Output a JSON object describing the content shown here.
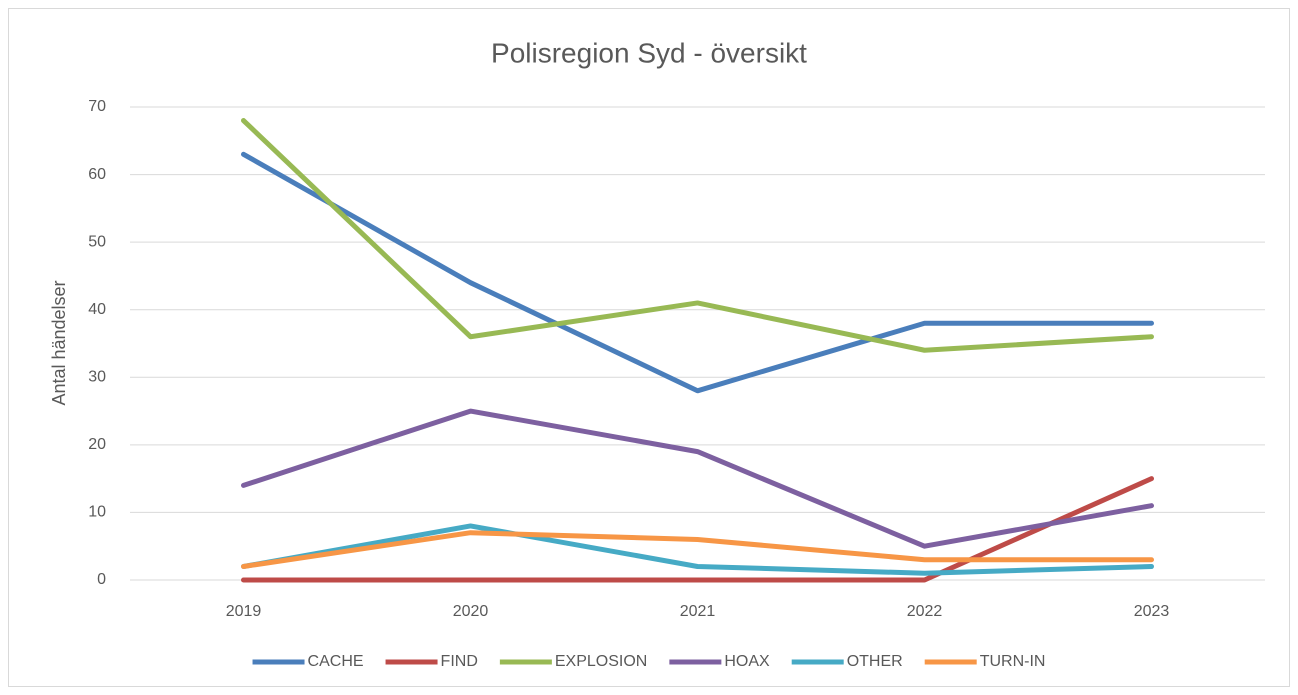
{
  "chart_data": {
    "type": "line",
    "title": "Polisregion Syd - översikt",
    "y_label": "Antal händelser",
    "categories": [
      "2019",
      "2020",
      "2021",
      "2022",
      "2023"
    ],
    "series": [
      {
        "name": "CACHE",
        "color": "#4a7ebb",
        "values": [
          63,
          44,
          28,
          38,
          38
        ]
      },
      {
        "name": "FIND",
        "color": "#be4b48",
        "values": [
          0,
          0,
          0,
          0,
          15
        ]
      },
      {
        "name": "EXPLOSION",
        "color": "#98b954",
        "values": [
          68,
          36,
          41,
          34,
          36
        ]
      },
      {
        "name": "HOAX",
        "color": "#7d60a0",
        "values": [
          14,
          25,
          19,
          5,
          11
        ]
      },
      {
        "name": "OTHER",
        "color": "#46aac5",
        "values": [
          2,
          8,
          2,
          1,
          2
        ]
      },
      {
        "name": "TURN-IN",
        "color": "#f79646",
        "values": [
          2,
          7,
          6,
          3,
          3
        ]
      }
    ],
    "ylim": [
      0,
      70
    ],
    "yticks": [
      0,
      10,
      20,
      30,
      40,
      50,
      60,
      70
    ],
    "grid": true,
    "legend": "bottom"
  }
}
